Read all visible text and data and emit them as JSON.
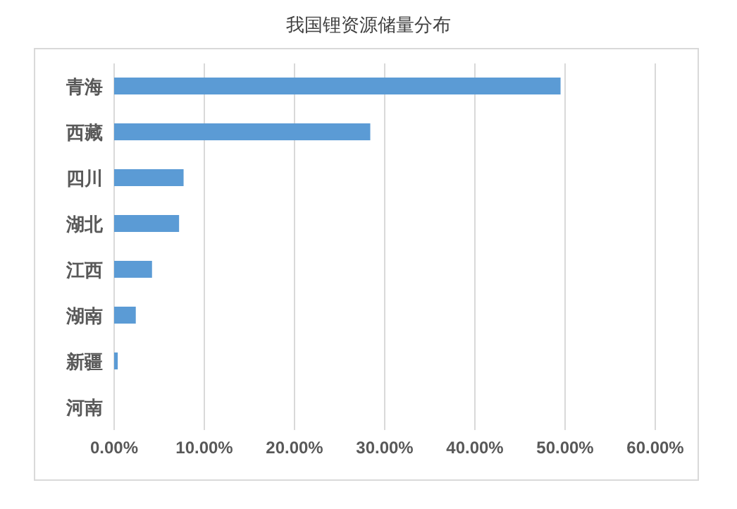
{
  "chart_data": {
    "type": "bar",
    "orientation": "horizontal",
    "title": "我国锂资源储量分布",
    "categories": [
      "青海",
      "西藏",
      "四川",
      "湖北",
      "江西",
      "湖南",
      "新疆",
      "河南"
    ],
    "values": [
      49.5,
      28.4,
      7.7,
      7.2,
      4.2,
      2.4,
      0.4,
      0
    ],
    "color": "#5b9bd5",
    "xlim": [
      0,
      60
    ],
    "xticks": [
      {
        "value": 0,
        "label": "0.00%"
      },
      {
        "value": 10,
        "label": "10.00%"
      },
      {
        "value": 20,
        "label": "20.00%"
      },
      {
        "value": 30,
        "label": "30.00%"
      },
      {
        "value": 40,
        "label": "40.00%"
      },
      {
        "value": 50,
        "label": "50.00%"
      },
      {
        "value": 60,
        "label": "60.00%"
      }
    ],
    "grid": "x",
    "legend": false
  }
}
